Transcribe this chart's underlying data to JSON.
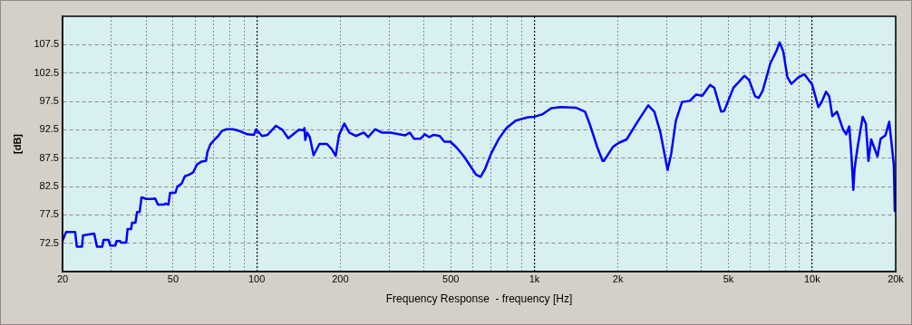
{
  "chart_data": {
    "type": "line",
    "xlabel": "Frequency Response  - frequency [Hz]",
    "ylabel": "[dB]",
    "log": "x",
    "grid": true,
    "legend": false,
    "marker": "none",
    "line_style": "solid",
    "xlim": [
      20,
      20000
    ],
    "ylim": [
      67.5,
      112.5
    ],
    "yticks": [
      72.5,
      77.5,
      82.5,
      87.5,
      92.5,
      97.5,
      102.5,
      107.5
    ],
    "xticks": [
      20,
      {
        "value": 30,
        "label": null
      },
      {
        "value": 40,
        "label": null
      },
      50,
      {
        "value": 60,
        "label": null
      },
      {
        "value": 70,
        "label": null
      },
      {
        "value": 80,
        "label": null
      },
      {
        "value": 90,
        "label": null
      },
      100,
      200,
      {
        "value": 300,
        "label": null
      },
      {
        "value": 400,
        "label": null
      },
      500,
      {
        "value": 600,
        "label": null
      },
      {
        "value": 700,
        "label": null
      },
      {
        "value": 800,
        "label": null
      },
      {
        "value": 900,
        "label": null
      },
      {
        "value": 1000,
        "label": "1k"
      },
      {
        "value": 2000,
        "label": "2k"
      },
      {
        "value": 3000,
        "label": null
      },
      {
        "value": 4000,
        "label": null
      },
      {
        "value": 5000,
        "label": "5k"
      },
      {
        "value": 6000,
        "label": null
      },
      {
        "value": 7000,
        "label": null
      },
      {
        "value": 8000,
        "label": null
      },
      {
        "value": 9000,
        "label": null
      },
      {
        "value": 10000,
        "label": "10k"
      },
      {
        "value": 20000,
        "label": "20k"
      }
    ],
    "series": [
      {
        "color": "#0000ff",
        "x": [
          20,
          20.6,
          22.2,
          22.5,
          23.5,
          23.7,
          26.0,
          26.6,
          27.8,
          28.1,
          29.3,
          29.7,
          31.0,
          31.3,
          32.2,
          32.5,
          33.9,
          34.3,
          35.3,
          35.6,
          36.6,
          37.1,
          37.9,
          38.5,
          40.0,
          42.0,
          43.1,
          44.1,
          46.2,
          47,
          48.1,
          48.8,
          51.0,
          51.8,
          53.7,
          55.1,
          57.2,
          59.1,
          61.0,
          63.4,
          65.7,
          66.5,
          68.1,
          70.6,
          72.7,
          75.0,
          77.9,
          82.0,
          85.3,
          88.5,
          92.5,
          97.8,
          99.6,
          104.6,
          109.5,
          117.4,
          123.7,
          130.0,
          141.9,
          147.4,
          148.6,
          149.6,
          151.9,
          155.4,
          160.3,
          168.3,
          179.1,
          186.2,
          192.6,
          197.8,
          206.8,
          215.4,
          227.5,
          243.2,
          252.1,
          267,
          281.9,
          303.4,
          341.8,
          356,
          368.9,
          388.4,
          403.0,
          418.4,
          434.3,
          456.6,
          474.1,
          498.3,
          523.8,
          557.7,
          586.3,
          616.4,
          640.1,
          664.6,
          698.7,
          744.5,
          793.3,
          856.6,
          948.6,
          1000,
          1066,
          1151,
          1242,
          1409,
          1521,
          1580,
          1685,
          1761,
          1780,
          1920,
          2016,
          2148,
          2351,
          2570,
          2704,
          2844,
          3017,
          3110,
          3232,
          3403,
          3631,
          3823,
          4025,
          4293,
          4445,
          4703,
          4824,
          5210,
          5417,
          5705,
          5929,
          6234,
          6425,
          6641,
          7074,
          7442,
          7637,
          7874,
          8145,
          8420,
          8909,
          9379,
          10001,
          10530,
          10805,
          11232,
          11527,
          11827,
          12291,
          12937,
          13272,
          13614,
          13864,
          14080,
          14222,
          14518,
          15215,
          15616,
          15953,
          16325,
          17197,
          17650,
          18362,
          18955,
          19300,
          19700,
          19850,
          19950,
          20000
        ],
        "values": [
          72.9,
          74.5,
          74.5,
          71.9,
          71.9,
          73.9,
          74.2,
          71.9,
          71.9,
          73.1,
          73.1,
          72.1,
          72.1,
          72.9,
          72.9,
          72.6,
          72.6,
          75.0,
          75.0,
          76.1,
          76.1,
          78.0,
          78.0,
          80.6,
          80.3,
          80.3,
          80.4,
          79.3,
          79.3,
          79.5,
          79.3,
          81.4,
          81.4,
          82.5,
          83.0,
          84.3,
          84.6,
          85.0,
          86.4,
          86.9,
          87.0,
          88.6,
          89.9,
          90.8,
          91.4,
          92.3,
          92.6,
          92.6,
          92.4,
          92.1,
          91.7,
          91.6,
          92.6,
          91.4,
          91.6,
          93.2,
          92.5,
          91.0,
          92.5,
          92.4,
          92.8,
          90.7,
          92.0,
          91.2,
          88.0,
          90.0,
          90.0,
          89.1,
          87.9,
          91.5,
          93.6,
          92.0,
          91.4,
          92.0,
          91.2,
          92.6,
          92.0,
          92.0,
          91.5,
          92.0,
          90.9,
          90.9,
          91.7,
          91.2,
          91.6,
          91.4,
          90.4,
          90.4,
          89.4,
          87.8,
          86.2,
          84.6,
          84.2,
          85.6,
          88.3,
          90.9,
          92.8,
          94.1,
          94.7,
          94.8,
          95.2,
          96.3,
          96.5,
          96.4,
          95.7,
          93.6,
          89.4,
          87.0,
          87.0,
          89.5,
          90.2,
          90.8,
          93.9,
          96.8,
          95.7,
          92.0,
          85.4,
          88.3,
          94.1,
          97.4,
          97.6,
          98.7,
          98.5,
          100.4,
          99.9,
          95.7,
          95.8,
          99.9,
          100.8,
          102.0,
          101.3,
          98.4,
          98.1,
          99.4,
          104.2,
          106.4,
          107.9,
          106.3,
          101.8,
          100.6,
          101.7,
          102.3,
          100.5,
          96.5,
          97.3,
          99.2,
          98.4,
          94.9,
          95.7,
          92.5,
          91.7,
          93.1,
          87.8,
          81.9,
          85.6,
          88.8,
          94.8,
          93.6,
          87.0,
          90.8,
          87.8,
          90.9,
          91.5,
          93.9,
          90.4,
          86.2,
          78.2,
          83.5,
          83.6
        ]
      }
    ]
  }
}
